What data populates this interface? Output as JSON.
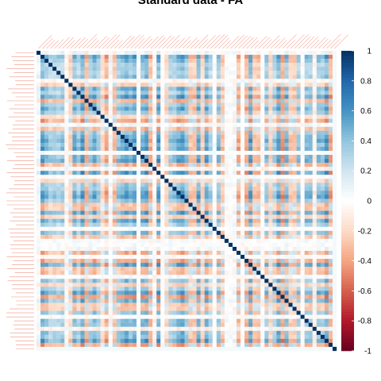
{
  "chart_data": {
    "type": "heatmap",
    "title": "Standard data - FA",
    "n_variables": 75,
    "diagonal_value": 1,
    "last_variable_correlation": 0.05,
    "value_range": [
      -1,
      1
    ],
    "colorbar": {
      "ticks": [
        1,
        0.8,
        0.6,
        0.4,
        0.2,
        0,
        -0.2,
        -0.4,
        -0.6,
        -0.8,
        -1
      ],
      "tick_labels": [
        "1",
        "0.8",
        "0.6",
        "0.4",
        "0.2",
        "0",
        "-0.2",
        "-0.4",
        "-0.6",
        "-0.8",
        "-1"
      ],
      "palette": [
        "#67001f",
        "#b2182b",
        "#d6604d",
        "#f4a582",
        "#fddbc7",
        "#ffffff",
        "#d1e5f0",
        "#92c5de",
        "#4393c3",
        "#2166ac",
        "#053061"
      ]
    },
    "label_color": "#e8735a",
    "axis_labels_legible": false,
    "grid": false,
    "legend_position": "right"
  }
}
